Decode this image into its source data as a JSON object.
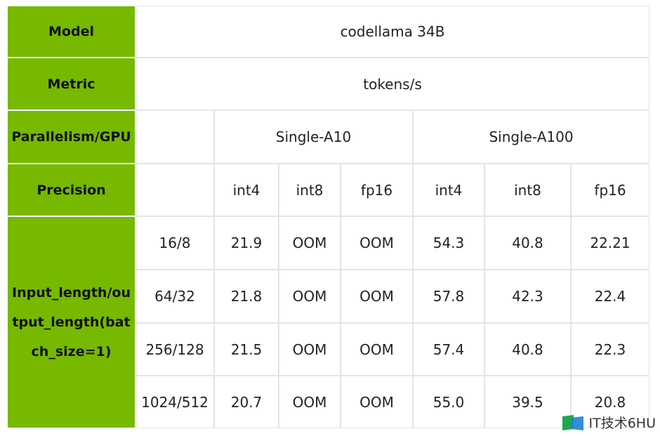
{
  "table": {
    "model": {
      "label": "Model",
      "value": "codellama 34B"
    },
    "metric": {
      "label": "Metric",
      "value": "tokens/s"
    },
    "parallelism": {
      "label": "Parallelism/GPU",
      "groups": [
        "Single-A10",
        "Single-A100"
      ]
    },
    "precision": {
      "label": "Precision",
      "values": [
        "int4",
        "int8",
        "fp16",
        "int4",
        "int8",
        "fp16"
      ]
    },
    "length_label": "Input_length/output_length(batch_size=1)",
    "rows": [
      {
        "length": "16/8",
        "values": [
          "21.9",
          "OOM",
          "OOM",
          "54.3",
          "40.8",
          "22.21"
        ]
      },
      {
        "length": "64/32",
        "values": [
          "21.8",
          "OOM",
          "OOM",
          "57.8",
          "42.3",
          "22.4"
        ]
      },
      {
        "length": "256/128",
        "values": [
          "21.5",
          "OOM",
          "OOM",
          "57.4",
          "40.8",
          "22.3"
        ]
      },
      {
        "length": "1024/512",
        "values": [
          "20.7",
          "OOM",
          "OOM",
          "55.0",
          "39.5",
          "20.8"
        ]
      }
    ]
  },
  "watermark": "IT技术6HU"
}
